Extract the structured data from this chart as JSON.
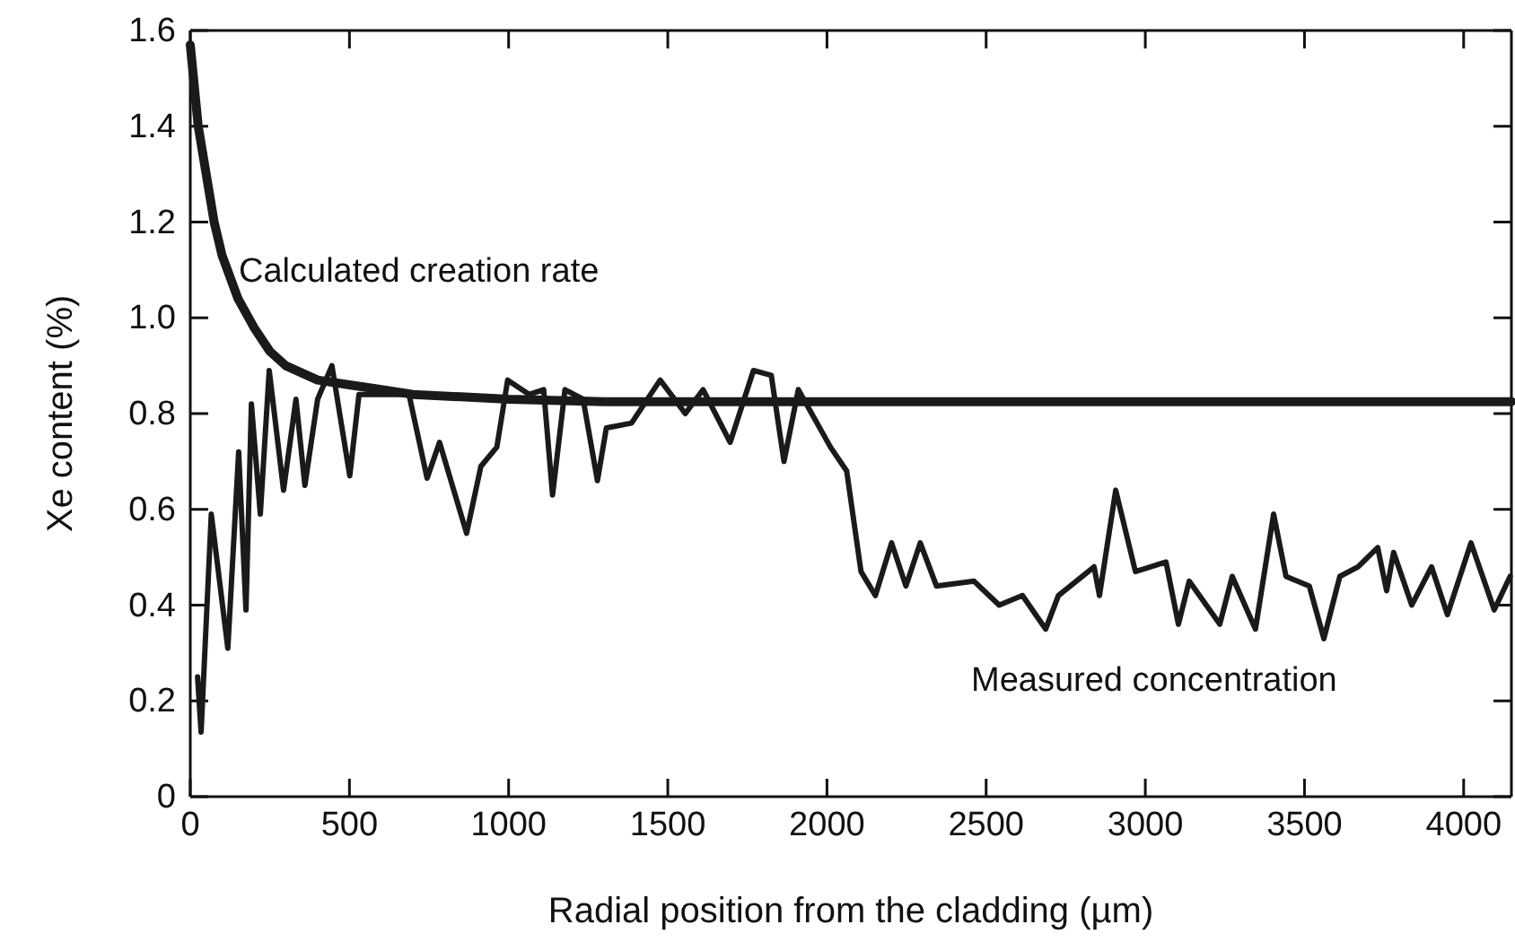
{
  "chart_data": {
    "type": "line",
    "xlabel": "Radial position from the cladding (µm)",
    "ylabel": "Xe content (%)",
    "xlim": [
      0,
      4150
    ],
    "xticks": [
      0,
      500,
      1000,
      1500,
      2000,
      2500,
      3000,
      3500,
      4000
    ],
    "ylim": [
      0,
      1.6
    ],
    "yticks": [
      0,
      0.2,
      0.4,
      0.6,
      0.8,
      {
        "value": 1,
        "label": "1.0"
      },
      1.2,
      1.4,
      1.6
    ],
    "grid": false,
    "marker": "none",
    "line_style": "solid",
    "annotations": [
      "Calculated creation rate",
      "Measured concentration"
    ],
    "series": [
      {
        "color": "#1a1a1a",
        "x": [
          0,
          25,
          50,
          75,
          100,
          150,
          200,
          250,
          300,
          400,
          500,
          600,
          700,
          850,
          1000,
          1300,
          1600,
          2000,
          3000,
          4150
        ],
        "values": [
          1.57,
          1.4,
          1.3,
          1.2,
          1.13,
          1.04,
          0.98,
          0.93,
          0.9,
          0.87,
          0.86,
          0.85,
          0.84,
          0.835,
          0.83,
          0.825,
          0.825,
          0.825,
          0.825,
          0.825
        ]
      },
      {
        "color": "#1a1a1a",
        "x": [
          23,
          34,
          66,
          118,
          152,
          175,
          192,
          220,
          248,
          293,
          332,
          360,
          400,
          445,
          501,
          530,
          687,
          744,
          783,
          868,
          913,
          963,
          997,
          1065,
          1110,
          1138,
          1177,
          1234,
          1279,
          1307,
          1386,
          1476,
          1555,
          1611,
          1696,
          1769,
          1825,
          1865,
          1910,
          2011,
          2062,
          2107,
          2152,
          2203,
          2248,
          2293,
          2344,
          2462,
          2541,
          2614,
          2687,
          2727,
          2839,
          2856,
          2907,
          2969,
          3065,
          3104,
          3138,
          3234,
          3273,
          3346,
          3403,
          3442,
          3515,
          3561,
          3611,
          3668,
          3730,
          3758,
          3780,
          3837,
          3899,
          3949,
          4023,
          4096,
          4146
        ],
        "values": [
          0.25,
          0.135,
          0.59,
          0.31,
          0.72,
          0.39,
          0.82,
          0.59,
          0.89,
          0.64,
          0.83,
          0.65,
          0.83,
          0.9,
          0.67,
          0.84,
          0.84,
          0.665,
          0.74,
          0.55,
          0.69,
          0.73,
          0.87,
          0.84,
          0.85,
          0.63,
          0.85,
          0.83,
          0.66,
          0.77,
          0.78,
          0.87,
          0.8,
          0.85,
          0.74,
          0.89,
          0.88,
          0.7,
          0.85,
          0.73,
          0.68,
          0.47,
          0.42,
          0.53,
          0.44,
          0.53,
          0.44,
          0.45,
          0.4,
          0.42,
          0.35,
          0.42,
          0.48,
          0.42,
          0.64,
          0.47,
          0.49,
          0.36,
          0.45,
          0.36,
          0.46,
          0.35,
          0.59,
          0.46,
          0.44,
          0.33,
          0.46,
          0.48,
          0.52,
          0.43,
          0.51,
          0.4,
          0.48,
          0.38,
          0.53,
          0.39,
          0.46
        ]
      }
    ]
  }
}
